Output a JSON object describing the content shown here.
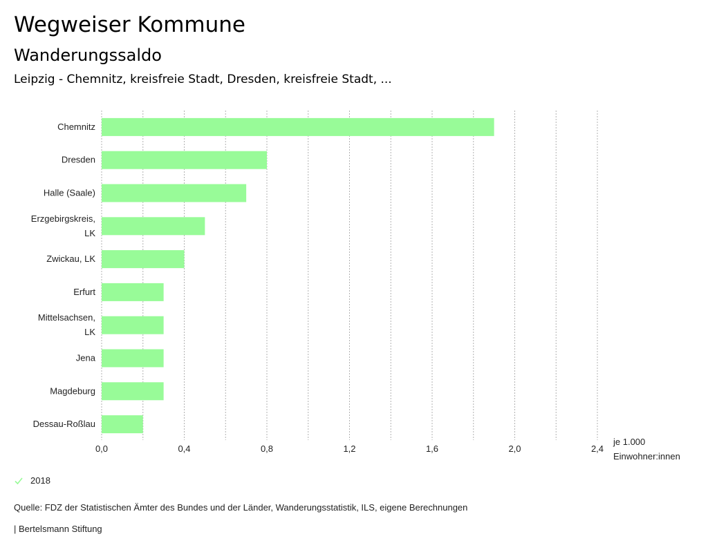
{
  "header": {
    "title": "Wegweiser Kommune",
    "subtitle": "Wanderungssaldo",
    "description": "Leipzig - Chemnitz, kreisfreie Stadt, Dresden, kreisfreie Stadt, ..."
  },
  "legend": {
    "label": "2018"
  },
  "footer": {
    "source": "Quelle: FDZ der Statistischen Ämter des Bundes und der Länder, Wanderungsstatistik, ILS, eigene Berechnungen",
    "publisher": "| Bertelsmann Stiftung"
  },
  "colors": {
    "bar": "#98fb98",
    "grid": "#b0b0b0"
  },
  "chart_data": {
    "type": "bar",
    "orientation": "horizontal",
    "title": "Wanderungssaldo",
    "unit_label": [
      "je 1.000",
      "Einwohner:innen"
    ],
    "categories": [
      [
        "Chemnitz"
      ],
      [
        "Dresden"
      ],
      [
        "Halle (Saale)"
      ],
      [
        "Erzgebirgskreis,",
        "LK"
      ],
      [
        "Zwickau, LK"
      ],
      [
        "Erfurt"
      ],
      [
        "Mittelsachsen,",
        "LK"
      ],
      [
        "Jena"
      ],
      [
        "Magdeburg"
      ],
      [
        "Dessau-Roßlau"
      ]
    ],
    "series": [
      {
        "name": "2018",
        "values": [
          1.9,
          0.8,
          0.7,
          0.5,
          0.4,
          0.3,
          0.3,
          0.3,
          0.3,
          0.2
        ]
      }
    ],
    "xlim": [
      0,
      2.4
    ],
    "ticks": [
      0,
      0.4,
      0.8,
      1.2,
      1.6,
      2.0,
      2.4
    ],
    "tick_labels": [
      "0,0",
      "0,4",
      "0,8",
      "1,2",
      "1,6",
      "2,0",
      "2,4"
    ],
    "grid": true,
    "legend_position": "bottom-left"
  }
}
